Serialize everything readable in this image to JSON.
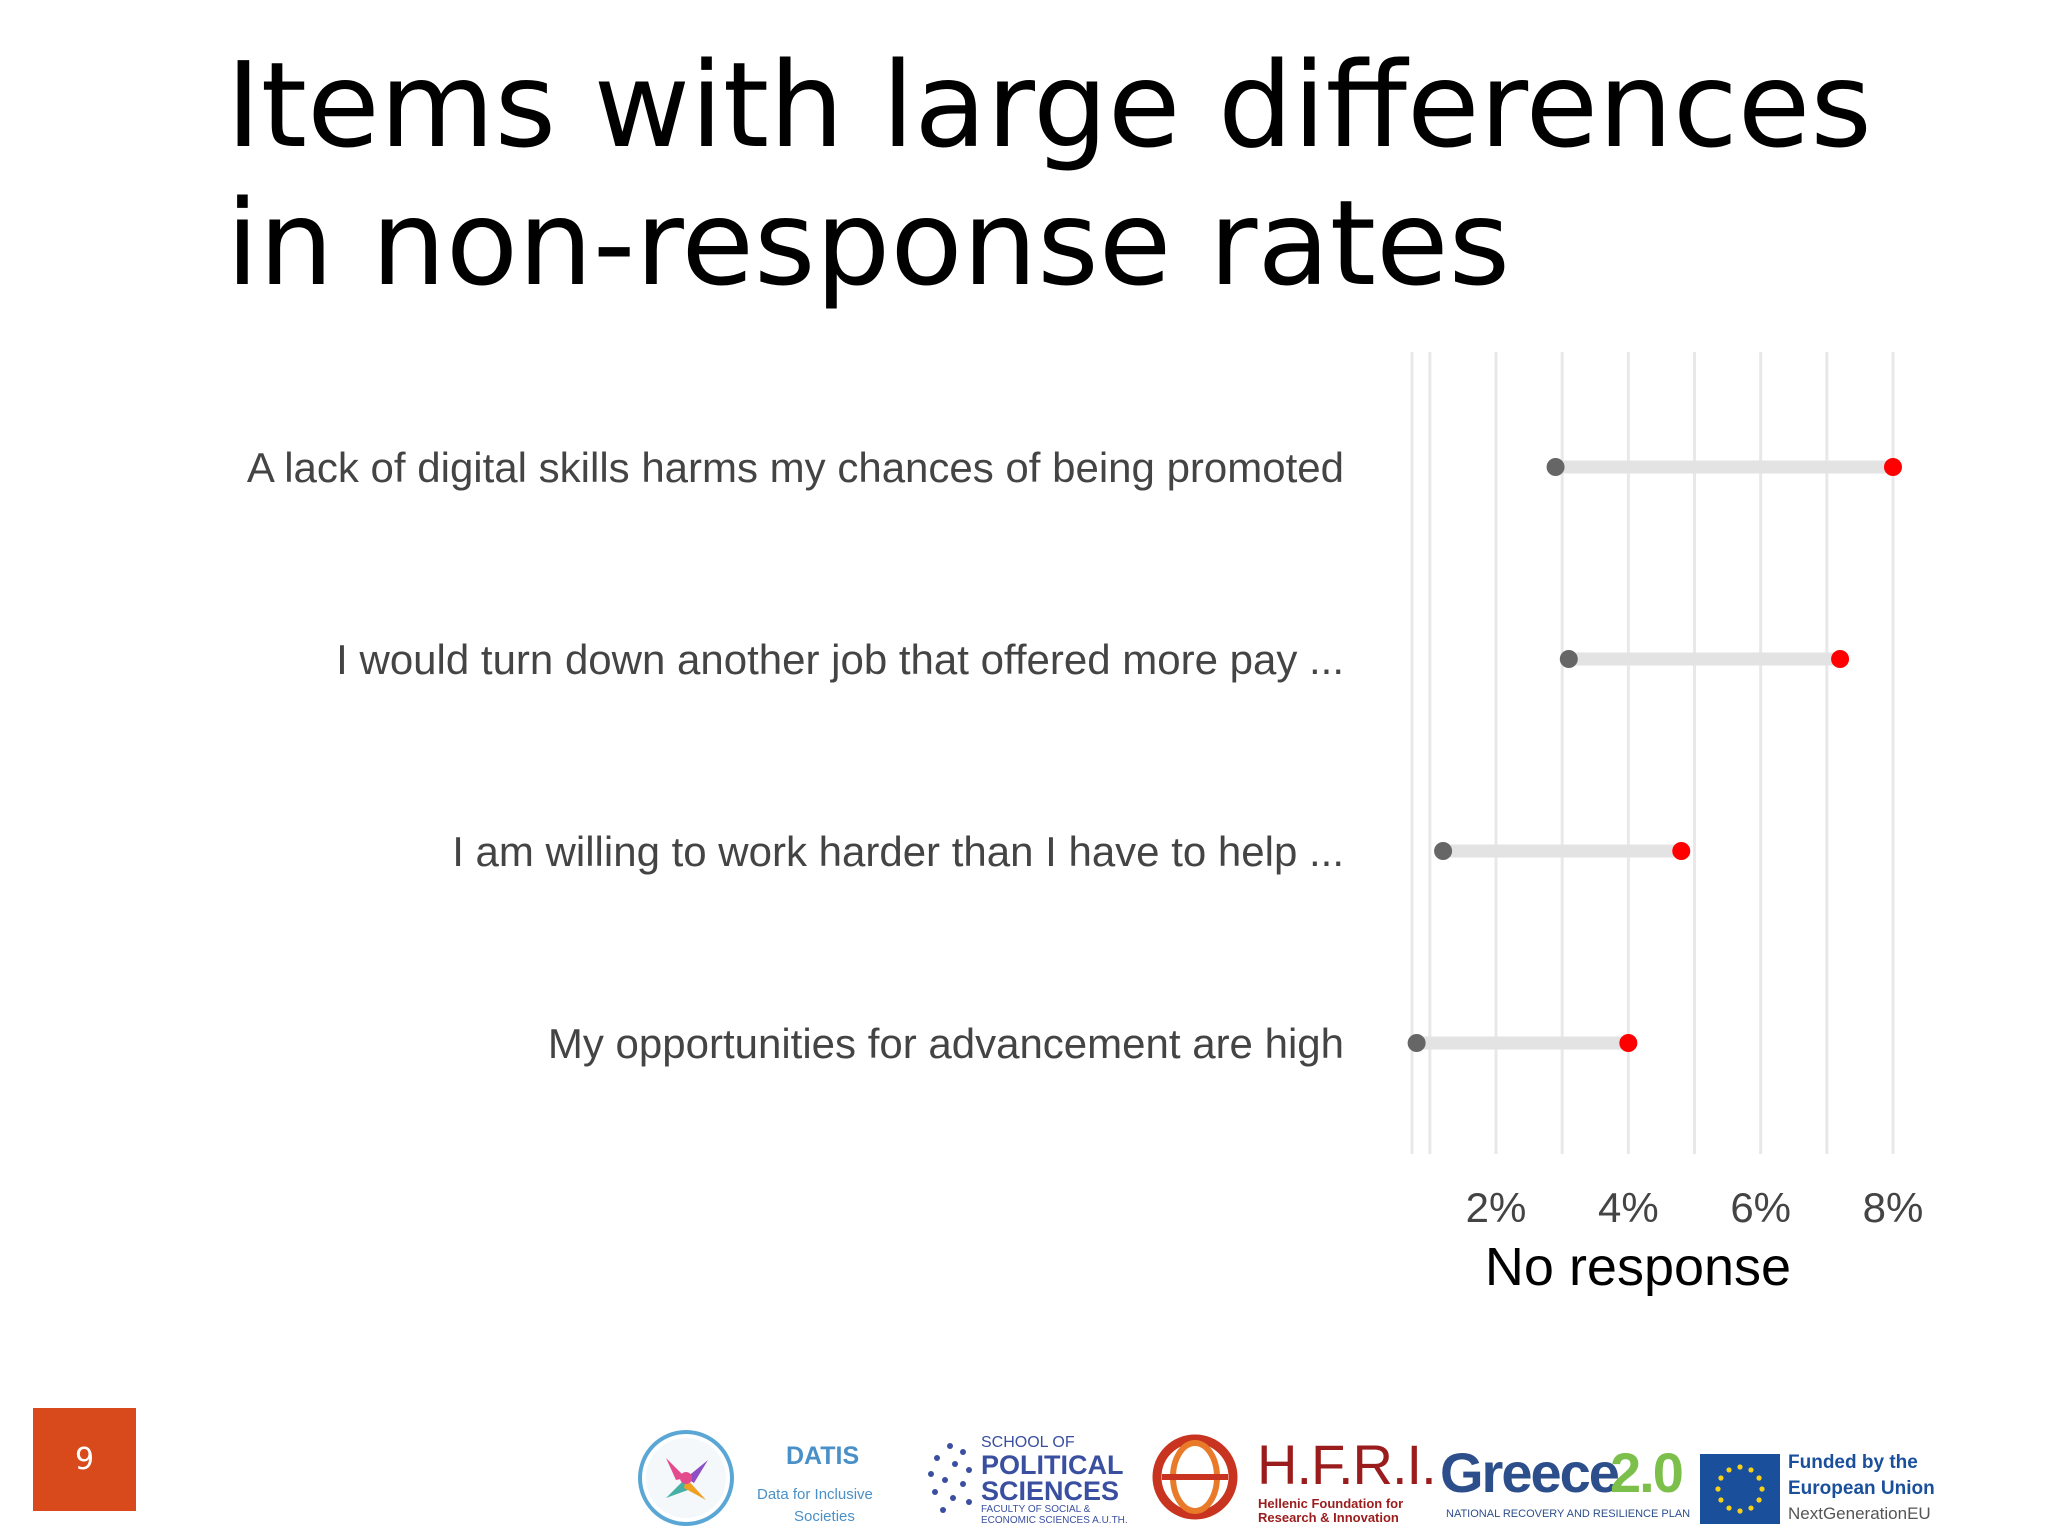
{
  "slide": {
    "title": "Items with large differences in non-response rates",
    "page_number": "9"
  },
  "colors": {
    "accent": "#d84a1b",
    "group_a": "#666666",
    "group_b": "#ff0000",
    "segment": "#e3e3e3",
    "grid": "#e8e8e8"
  },
  "chart_data": {
    "type": "dumbbell",
    "orientation": "horizontal",
    "categories": [
      "A lack of digital skills harms my chances of being promoted",
      "I would turn down another job that offered more pay ...",
      "I am willing to work harder than I have to help ...",
      "My opportunities for advancement are high"
    ],
    "series": [
      {
        "color": "#666666",
        "values": [
          2.9,
          3.1,
          1.2,
          0.8
        ]
      },
      {
        "color": "#ff0000",
        "values": [
          8.0,
          7.2,
          4.8,
          4.0
        ]
      }
    ],
    "xlabel": "No response",
    "xlim": [
      0.7,
      8.0
    ],
    "x_ticks": [
      2,
      4,
      6,
      8
    ],
    "x_tick_labels": [
      "2%",
      "4%",
      "6%",
      "8%"
    ],
    "minor_grid": [
      1,
      3,
      5,
      7
    ],
    "grid": true,
    "legend": "none"
  },
  "logos": {
    "datis": {
      "name": "DATIS",
      "tagline_1": "Data for Inclusive",
      "tagline_2": "Societies"
    },
    "school": {
      "line1": "SCHOOL OF",
      "line2": "POLITICAL",
      "line3": "SCIENCES",
      "line4": "FACULTY OF SOCIAL &",
      "line5": "ECONOMIC SCIENCES A.U.TH."
    },
    "hfri": {
      "name": "H.F.R.I.",
      "line1": "Hellenic Foundation for",
      "line2": "Research & Innovation"
    },
    "greece": {
      "name_a": "Greece",
      "name_b": "2.0",
      "tagline": "NATIONAL RECOVERY AND RESILIENCE PLAN"
    },
    "eu": {
      "line1": "Funded by the",
      "line2": "European Union",
      "line3": "NextGenerationEU"
    }
  }
}
